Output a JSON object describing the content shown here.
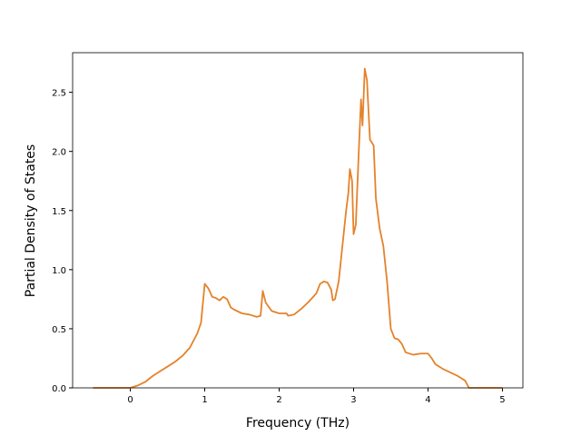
{
  "chart_data": {
    "type": "line",
    "xlabel": "Frequency (THz)",
    "ylabel": "Partial Density of States",
    "xlim": [
      -0.775,
      5.275
    ],
    "ylim": [
      0,
      2.835
    ],
    "xticks": [
      0,
      1,
      2,
      3,
      4,
      5
    ],
    "yticks": [
      {
        "value": 0,
        "label": "0.0"
      },
      0.5,
      {
        "value": 1,
        "label": "1.0"
      },
      1.5,
      {
        "value": 2,
        "label": "2.0"
      },
      2.5
    ],
    "series": [
      {
        "color": "#e5822a",
        "x": [
          -0.5,
          0.0,
          0.1,
          0.2,
          0.3,
          0.4,
          0.5,
          0.6,
          0.7,
          0.8,
          0.9,
          0.95,
          1.0,
          1.05,
          1.1,
          1.15,
          1.2,
          1.25,
          1.3,
          1.35,
          1.4,
          1.5,
          1.6,
          1.7,
          1.75,
          1.78,
          1.82,
          1.9,
          2.0,
          2.1,
          2.12,
          2.2,
          2.3,
          2.4,
          2.5,
          2.55,
          2.6,
          2.65,
          2.7,
          2.72,
          2.75,
          2.8,
          2.85,
          2.9,
          2.93,
          2.95,
          2.98,
          3.0,
          3.03,
          3.07,
          3.1,
          3.12,
          3.15,
          3.18,
          3.22,
          3.27,
          3.3,
          3.35,
          3.4,
          3.45,
          3.5,
          3.55,
          3.6,
          3.65,
          3.7,
          3.8,
          3.9,
          4.0,
          4.05,
          4.1,
          4.2,
          4.3,
          4.4,
          4.5,
          4.55,
          4.6,
          5.0
        ],
        "values": [
          0,
          0,
          0.02,
          0.05,
          0.1,
          0.14,
          0.18,
          0.22,
          0.27,
          0.34,
          0.46,
          0.55,
          0.88,
          0.84,
          0.77,
          0.76,
          0.74,
          0.77,
          0.75,
          0.68,
          0.66,
          0.63,
          0.62,
          0.6,
          0.61,
          0.82,
          0.72,
          0.65,
          0.63,
          0.63,
          0.61,
          0.62,
          0.67,
          0.73,
          0.8,
          0.88,
          0.9,
          0.89,
          0.83,
          0.74,
          0.75,
          0.9,
          1.2,
          1.5,
          1.65,
          1.85,
          1.75,
          1.3,
          1.38,
          2.0,
          2.44,
          2.22,
          2.7,
          2.6,
          2.1,
          2.05,
          1.6,
          1.35,
          1.2,
          0.9,
          0.5,
          0.42,
          0.41,
          0.37,
          0.3,
          0.28,
          0.29,
          0.29,
          0.25,
          0.2,
          0.16,
          0.13,
          0.1,
          0.06,
          0.0,
          0,
          0
        ]
      }
    ]
  }
}
